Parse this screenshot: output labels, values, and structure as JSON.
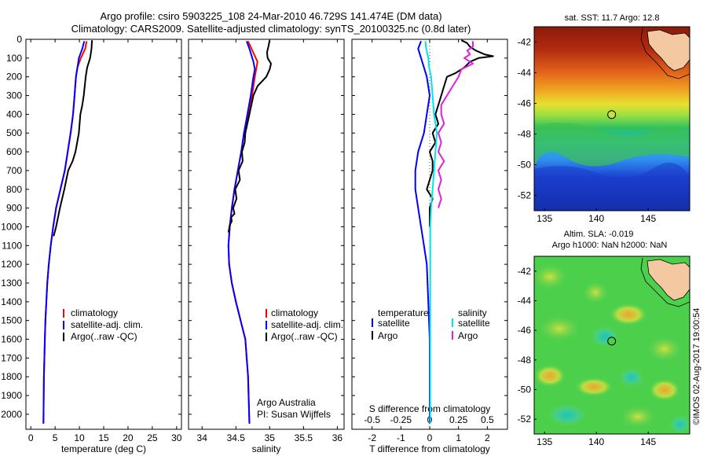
{
  "header": {
    "title_line1": "Argo profile: csiro 5903225_108 24-Mar-2010 46.729S 141.474E (DM data)",
    "title_line2": "Climatology: CARS2009. Satellite-adjusted climatology: synTS_20100325.nc (0.8d later)"
  },
  "colors": {
    "climatology": "#ff0000",
    "satellite": "#0000ff",
    "argo": "#000000",
    "sal_satellite": "#00e5ee",
    "sal_argo": "#e020e0"
  },
  "chart_data": [
    {
      "type": "line",
      "panel": "temperature",
      "xlabel": "temperature (deg C)",
      "xlim": [
        -1,
        31
      ],
      "ylim": [
        2080,
        0
      ],
      "xticks": [
        0,
        5,
        10,
        15,
        20,
        25,
        30
      ],
      "yticks": [
        0,
        100,
        200,
        300,
        400,
        500,
        600,
        700,
        800,
        900,
        1000,
        1100,
        1200,
        1300,
        1400,
        1500,
        1600,
        1700,
        1800,
        1900,
        2000
      ],
      "legend": [
        "climatology",
        "satellite-adj. clim.",
        "Argo(..raw -QC)"
      ],
      "series": [
        {
          "name": "climatology",
          "color": "#ff0000",
          "x": [
            11.5,
            11.2,
            10.3,
            9.6,
            9.3,
            9.0,
            8.7,
            8.2,
            7.6,
            7.0,
            6.1,
            5.2,
            4.6,
            4.1,
            3.7,
            3.4,
            3.2,
            3.0,
            2.9,
            2.8,
            2.7,
            2.6
          ],
          "y": [
            10,
            50,
            100,
            150,
            200,
            300,
            400,
            500,
            600,
            700,
            800,
            900,
            1000,
            1100,
            1200,
            1300,
            1400,
            1500,
            1600,
            1700,
            1800,
            2050
          ]
        },
        {
          "name": "satellite-adj. clim.",
          "color": "#0000ff",
          "x": [
            11.0,
            10.6,
            9.9,
            9.6,
            9.3,
            9.0,
            8.7,
            8.2,
            7.6,
            7.0,
            6.1,
            5.2,
            4.6,
            4.1,
            3.7,
            3.4,
            3.2,
            3.0,
            2.9,
            2.8,
            2.7,
            2.6
          ],
          "y": [
            10,
            50,
            100,
            150,
            200,
            300,
            400,
            500,
            600,
            700,
            800,
            900,
            1000,
            1100,
            1200,
            1300,
            1400,
            1500,
            1600,
            1700,
            1800,
            2050
          ]
        },
        {
          "name": "Argo(..raw -QC)",
          "color": "#000000",
          "x": [
            12.6,
            12.5,
            12.2,
            11.6,
            11.3,
            10.9,
            10.6,
            10.2,
            9.9,
            9.2,
            8.6,
            7.7,
            6.9,
            6.0,
            5.2,
            4.7
          ],
          "y": [
            5,
            50,
            100,
            150,
            200,
            300,
            350,
            400,
            500,
            600,
            650,
            700,
            800,
            900,
            1000,
            1050
          ]
        }
      ]
    },
    {
      "type": "line",
      "panel": "salinity",
      "xlabel": "salinity",
      "xlim": [
        33.8,
        36.1
      ],
      "ylim": [
        2080,
        0
      ],
      "xticks": [
        34,
        34.5,
        35,
        35.5,
        36
      ],
      "legend": [
        "climatology",
        "satellite-adj. clim.",
        "Argo(..raw -QC)"
      ],
      "annotation_line1": "Argo Australia",
      "annotation_line2": "PI: Susan Wijffels",
      "series": [
        {
          "name": "climatology",
          "color": "#ff0000",
          "x": [
            34.68,
            34.73,
            34.82,
            34.8,
            34.78,
            34.74,
            34.68,
            34.62,
            34.58,
            34.53,
            34.48,
            34.44,
            34.41,
            34.39,
            34.4,
            34.44,
            34.5,
            34.57,
            34.64,
            34.68,
            34.7
          ],
          "y": [
            10,
            50,
            120,
            160,
            200,
            300,
            400,
            500,
            600,
            700,
            800,
            900,
            1000,
            1100,
            1200,
            1300,
            1400,
            1500,
            1600,
            1800,
            2050
          ]
        },
        {
          "name": "satellite-adj. clim.",
          "color": "#0000ff",
          "x": [
            34.66,
            34.7,
            34.76,
            34.78,
            34.76,
            34.72,
            34.67,
            34.62,
            34.58,
            34.53,
            34.48,
            34.44,
            34.41,
            34.39,
            34.4,
            34.44,
            34.5,
            34.57,
            34.64,
            34.68,
            34.7
          ],
          "y": [
            10,
            50,
            120,
            160,
            200,
            300,
            400,
            500,
            600,
            700,
            800,
            900,
            1000,
            1100,
            1200,
            1300,
            1400,
            1500,
            1600,
            1800,
            2050
          ]
        },
        {
          "name": "Argo(..raw -QC)",
          "color": "#000000",
          "x": [
            35.0,
            34.98,
            34.96,
            34.97,
            35.02,
            35.0,
            34.95,
            34.82,
            34.76,
            34.7,
            34.64,
            34.63,
            34.59,
            34.6,
            34.54,
            34.56,
            34.49,
            34.51,
            34.46,
            34.48,
            34.43,
            34.44,
            34.41,
            34.4,
            34.39
          ],
          "y": [
            5,
            40,
            70,
            100,
            130,
            160,
            200,
            250,
            300,
            400,
            500,
            550,
            600,
            650,
            700,
            750,
            800,
            850,
            900,
            930,
            950,
            970,
            990,
            1010,
            1030
          ]
        }
      ]
    },
    {
      "type": "line",
      "panel": "difference",
      "xlabel": "T difference from climatology",
      "xlabel_top": "S difference from climatology",
      "xlim": [
        -2.7,
        2.7
      ],
      "ylim": [
        2080,
        0
      ],
      "xticks_T": [
        -2,
        -1,
        0,
        1,
        2
      ],
      "xticks_S": [
        -0.5,
        -0.25,
        0,
        0.25,
        0.5
      ],
      "xticks_S_labels": [
        "-0.5",
        "-0.25",
        "0",
        "0.25",
        "0.5"
      ],
      "legend_left_title": "temperature",
      "legend_right_title": "salinity",
      "legend_left": [
        "satellite",
        "Argo"
      ],
      "legend_right": [
        "satellite",
        "Argo"
      ],
      "series": [
        {
          "name": "temperature satellite",
          "color": "#0000ff",
          "x": [
            -0.3,
            -0.4,
            -0.3,
            -0.2,
            -0.1,
            0.0,
            -0.1,
            -0.2,
            -0.4,
            -0.5,
            -0.5,
            -0.4,
            -0.3,
            -0.2,
            -0.1,
            -0.05,
            0.0,
            0.0,
            0.0
          ],
          "y": [
            10,
            50,
            100,
            150,
            200,
            300,
            400,
            500,
            600,
            700,
            800,
            900,
            1000,
            1100,
            1200,
            1400,
            1600,
            1800,
            2050
          ]
        },
        {
          "name": "temperature Argo",
          "color": "#000000",
          "x": [
            1.1,
            1.3,
            1.4,
            1.6,
            1.9,
            2.2,
            1.7,
            1.4,
            1.2,
            0.9,
            0.6,
            0.5,
            0.4,
            0.2,
            0.3,
            0.1,
            0.2,
            0.0,
            0.1,
            0.1,
            0.0,
            -0.1,
            0.1,
            0.0,
            0.0
          ],
          "y": [
            5,
            20,
            40,
            60,
            80,
            90,
            100,
            120,
            150,
            180,
            200,
            250,
            300,
            400,
            450,
            500,
            550,
            600,
            650,
            700,
            750,
            800,
            850,
            900,
            1000
          ]
        },
        {
          "name": "salinity satellite",
          "color": "#00e5ee",
          "x": [
            -0.15,
            -0.12,
            -0.05,
            -0.02,
            0.05,
            0.1,
            0.15,
            0.25,
            0.2,
            0.15,
            0.1,
            0.05,
            0.02,
            0.02,
            0.02,
            0.02,
            0.02,
            0.02,
            0.02
          ],
          "y": [
            10,
            50,
            100,
            150,
            200,
            300,
            400,
            500,
            600,
            700,
            800,
            900,
            1000,
            1100,
            1200,
            1400,
            1600,
            1800,
            2050
          ]
        },
        {
          "name": "salinity Argo",
          "color": "#e020e0",
          "x": [
            1.5,
            1.5,
            1.3,
            1.4,
            1.2,
            1.5,
            1.1,
            1.0,
            0.8,
            0.6,
            0.4,
            0.4,
            0.5,
            0.3,
            0.4,
            0.3,
            0.5,
            0.3,
            0.4,
            0.3,
            0.4,
            0.3
          ],
          "y": [
            10,
            40,
            60,
            80,
            100,
            130,
            160,
            200,
            250,
            300,
            350,
            400,
            450,
            500,
            550,
            600,
            650,
            700,
            750,
            800,
            850,
            900
          ]
        }
      ]
    },
    {
      "type": "heatmap",
      "panel": "sst_map",
      "title": "sat. SST: 11.7 Argo: 12.8",
      "xlim": [
        134,
        149
      ],
      "ylim": [
        -53,
        -41
      ],
      "xticks": [
        135,
        140,
        145
      ],
      "yticks": [
        -42,
        -44,
        -46,
        -48,
        -50,
        -52
      ],
      "argo_position": {
        "lon": 141.474,
        "lat": -46.729
      },
      "sst_c": {
        "argo": 12.8,
        "satellite": 11.7
      }
    },
    {
      "type": "heatmap",
      "panel": "sla_map",
      "title_line1": "Altim. SLA: -0.019",
      "title_line2": "Argo h1000: NaN h2000: NaN",
      "xlim": [
        134,
        149
      ],
      "ylim": [
        -53,
        -41
      ],
      "xticks": [
        135,
        140,
        145
      ],
      "yticks": [
        -42,
        -44,
        -46,
        -48,
        -50,
        -52
      ],
      "argo_position": {
        "lon": 141.474,
        "lat": -46.729
      },
      "sla": -0.019
    }
  ],
  "footer": {
    "stamp": "©IMOS 02-Aug-2017 19:00:54"
  }
}
